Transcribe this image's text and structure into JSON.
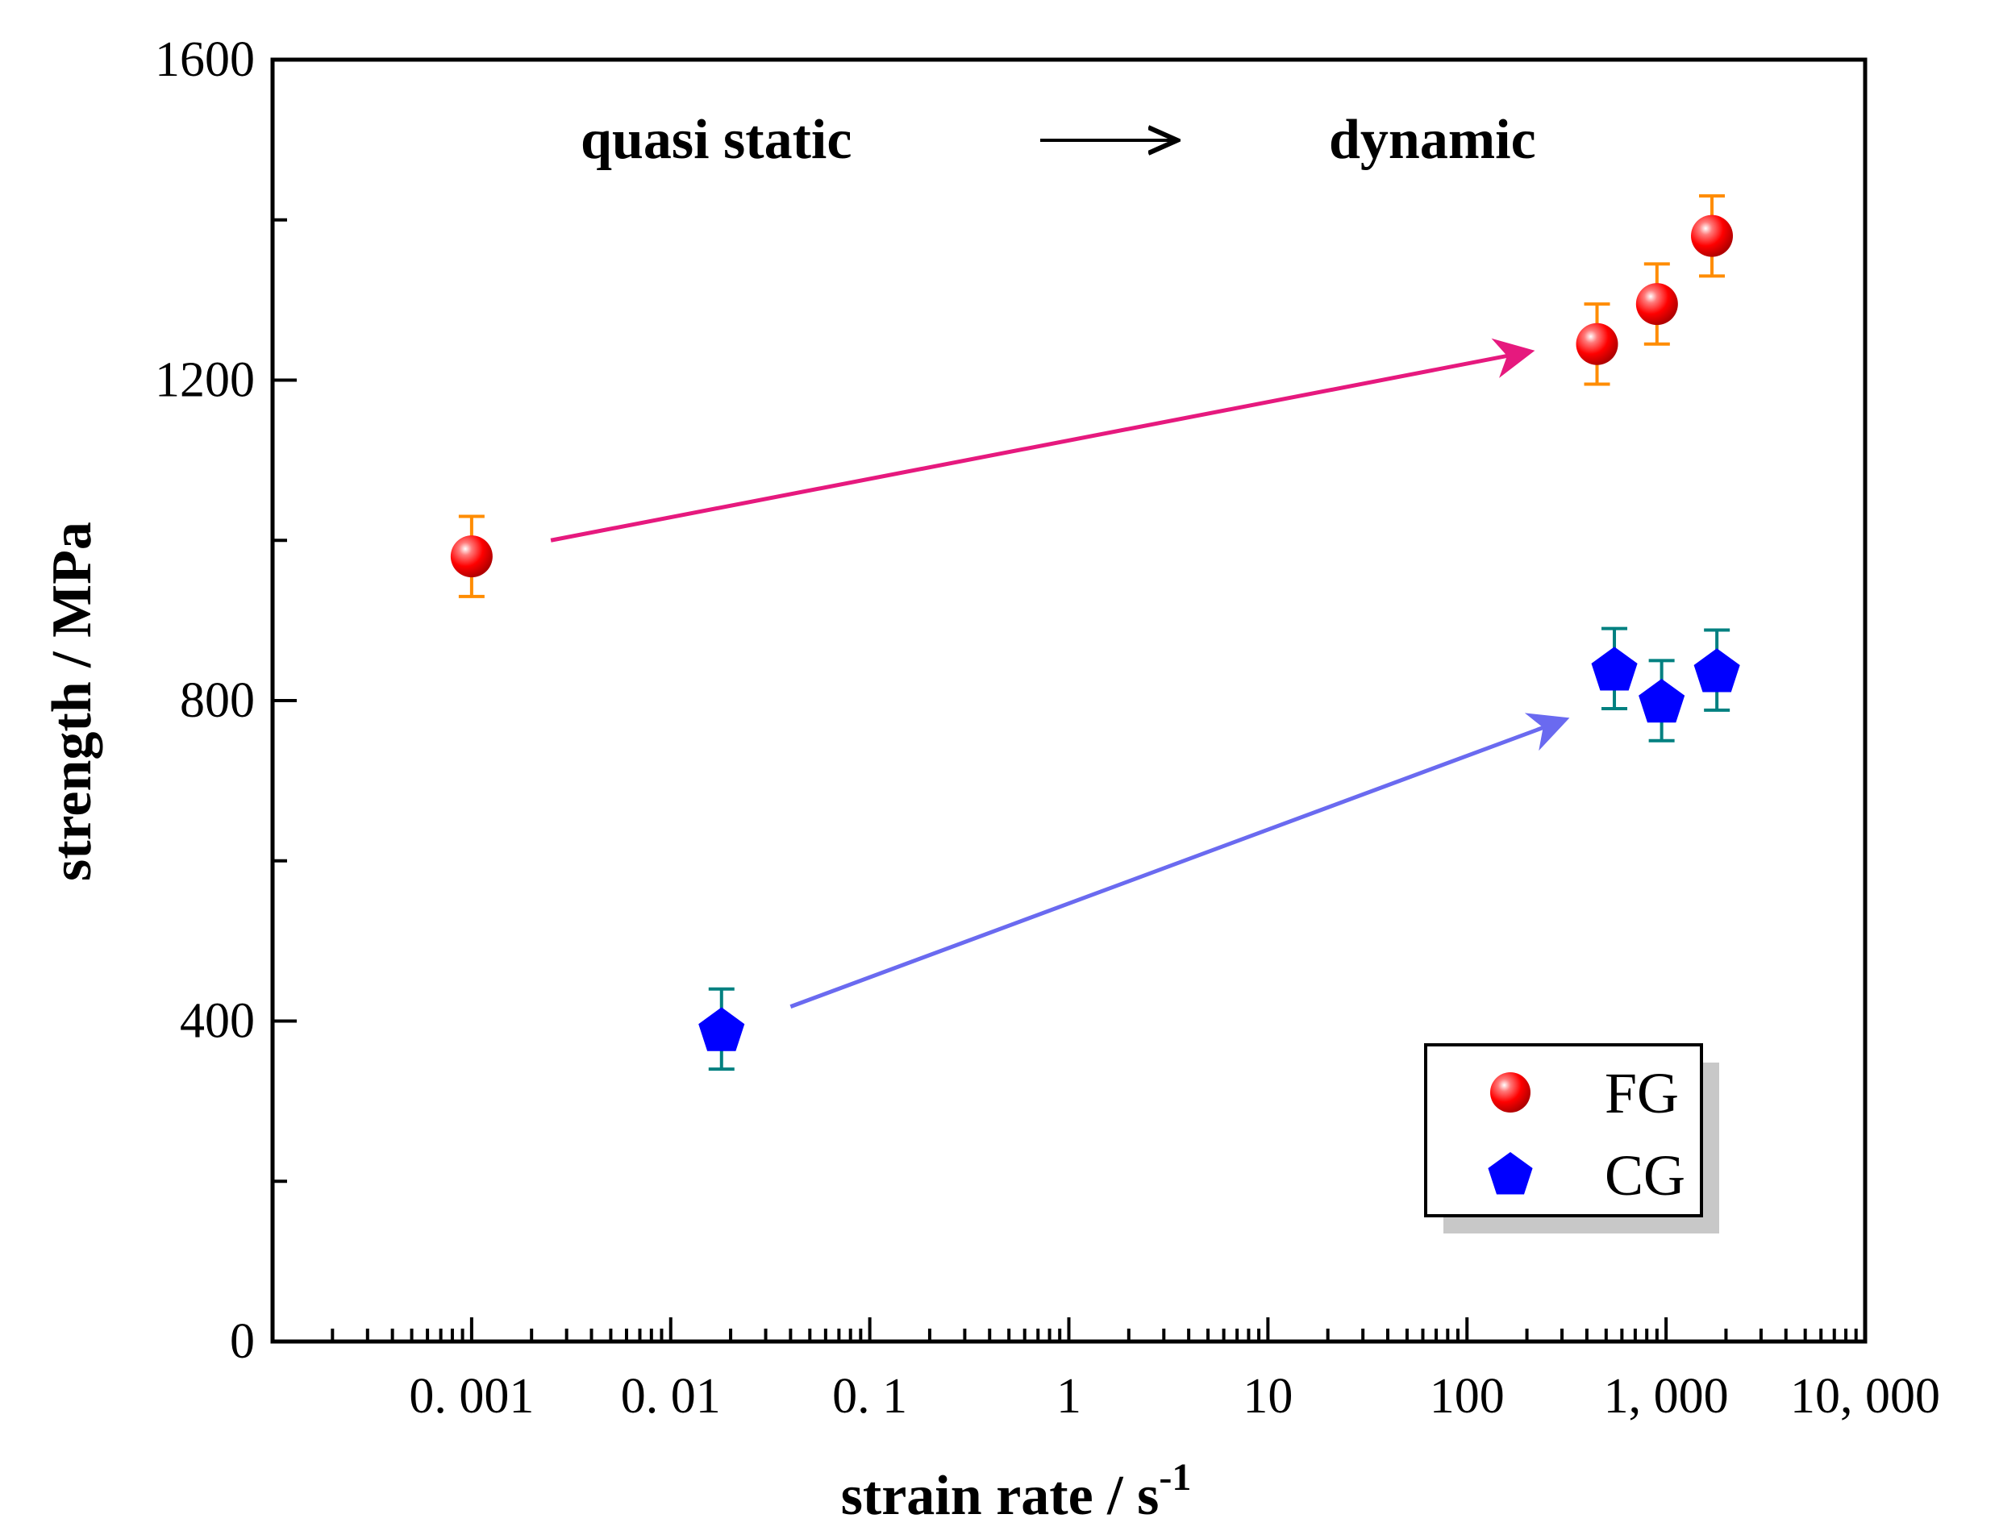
{
  "chart_data": {
    "type": "scatter",
    "title": "",
    "xlabel": "strain rate / s",
    "xlabel_sup": "-1",
    "ylabel": "strength / MPa",
    "xscale": "log",
    "xlim": [
      0.0001,
      10000
    ],
    "ylim": [
      0,
      1600
    ],
    "x_ticks": [
      0.001,
      0.01,
      0.1,
      1,
      10,
      100,
      1000,
      10000
    ],
    "x_tick_labels": [
      "0. 001",
      "0. 01",
      "0. 1",
      "1",
      "10",
      "100",
      "1, 000",
      "10, 000"
    ],
    "y_ticks": [
      0,
      400,
      800,
      1200,
      1600
    ],
    "y_tick_labels": [
      "0",
      "400",
      "800",
      "1200",
      "1600"
    ],
    "grid": false,
    "legend_position": "bottom-right",
    "series": [
      {
        "name": "FG",
        "marker": "circle",
        "color": "#ff0000",
        "error_color": "#ff8c00",
        "points": [
          {
            "x": 0.001,
            "y": 980,
            "err": 50
          },
          {
            "x": 450,
            "y": 1245,
            "err": 50
          },
          {
            "x": 900,
            "y": 1295,
            "err": 50
          },
          {
            "x": 1700,
            "y": 1380,
            "err": 50
          }
        ]
      },
      {
        "name": "CG",
        "marker": "pentagon",
        "color": "#0000ff",
        "error_color": "#008080",
        "points": [
          {
            "x": 0.018,
            "y": 390,
            "err": 50
          },
          {
            "x": 550,
            "y": 840,
            "err": 50
          },
          {
            "x": 950,
            "y": 800,
            "err": 50
          },
          {
            "x": 1800,
            "y": 838,
            "err": 50
          }
        ]
      }
    ],
    "annotations": {
      "quasi_static": "quasi static",
      "dynamic": "dynamic",
      "fg_arrow_color": "#e6197e",
      "cg_arrow_color": "#6a6af0",
      "fg_arrow": {
        "from": [
          0.0025,
          1000
        ],
        "to": [
          200,
          1235
        ]
      },
      "cg_arrow": {
        "from": [
          0.04,
          418
        ],
        "to": [
          300,
          775
        ]
      }
    }
  }
}
